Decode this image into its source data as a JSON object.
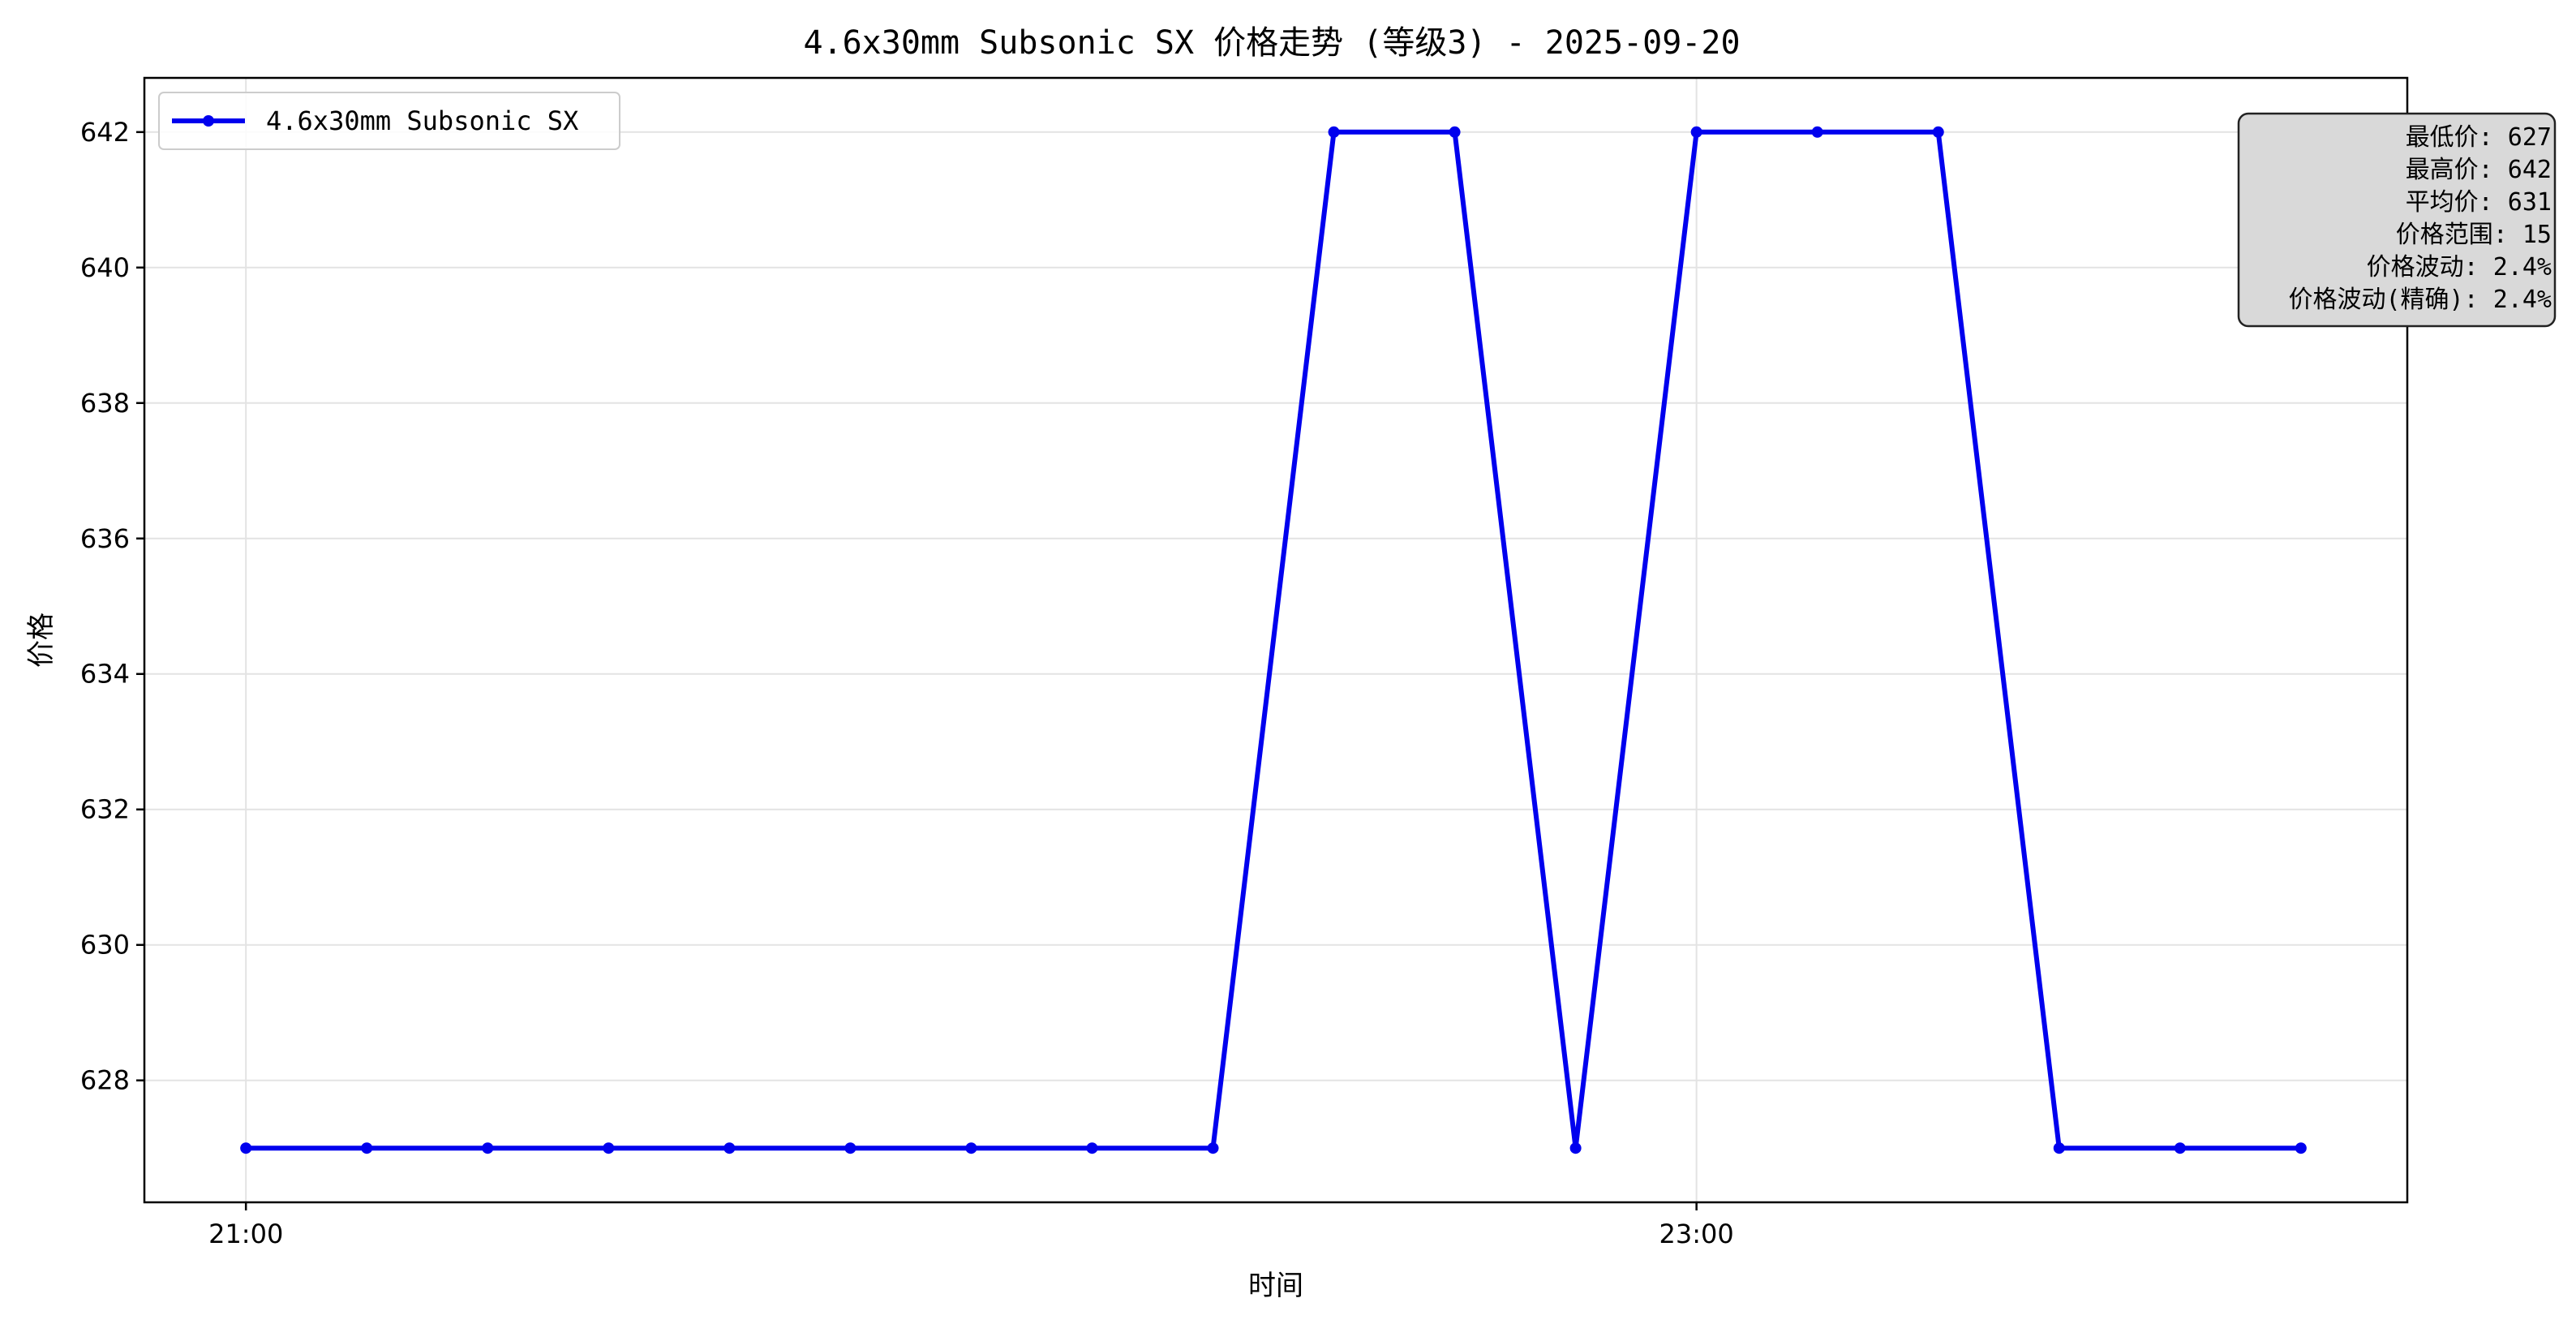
{
  "chart_data": {
    "type": "line",
    "title": "4.6x30mm Subsonic SX 价格走势 (等级3) - 2025-09-20",
    "xlabel": "时间",
    "ylabel": "价格",
    "x_tick_labels": [
      "21:00",
      "23:00"
    ],
    "x_ticks_hours": [
      21,
      23
    ],
    "xlim_hours": [
      20.86,
      23.98
    ],
    "ylim": [
      626.2,
      642.8
    ],
    "y_ticks": [
      628,
      630,
      632,
      634,
      636,
      638,
      640,
      642
    ],
    "grid": true,
    "legend_position": "top-left",
    "series": [
      {
        "name": "4.6x30mm Subsonic SX",
        "color": "#0000ee",
        "marker": "circle",
        "x": [
          "21:00",
          "21:10",
          "21:20",
          "21:30",
          "21:40",
          "21:50",
          "22:00",
          "22:10",
          "22:20",
          "22:30",
          "22:40",
          "22:50",
          "23:00",
          "23:10",
          "23:20",
          "23:30",
          "23:40",
          "23:50"
        ],
        "values": [
          627,
          627,
          627,
          627,
          627,
          627,
          627,
          627,
          627,
          642,
          642,
          627,
          642,
          642,
          642,
          627,
          627,
          627
        ]
      }
    ],
    "stats_box": {
      "position": "top-right",
      "lines": [
        "最低价: 627",
        "最高价: 642",
        "平均价: 631",
        "价格范围: 15",
        "价格波动: 2.4%",
        "价格波动(精确): 2.4%"
      ]
    }
  }
}
